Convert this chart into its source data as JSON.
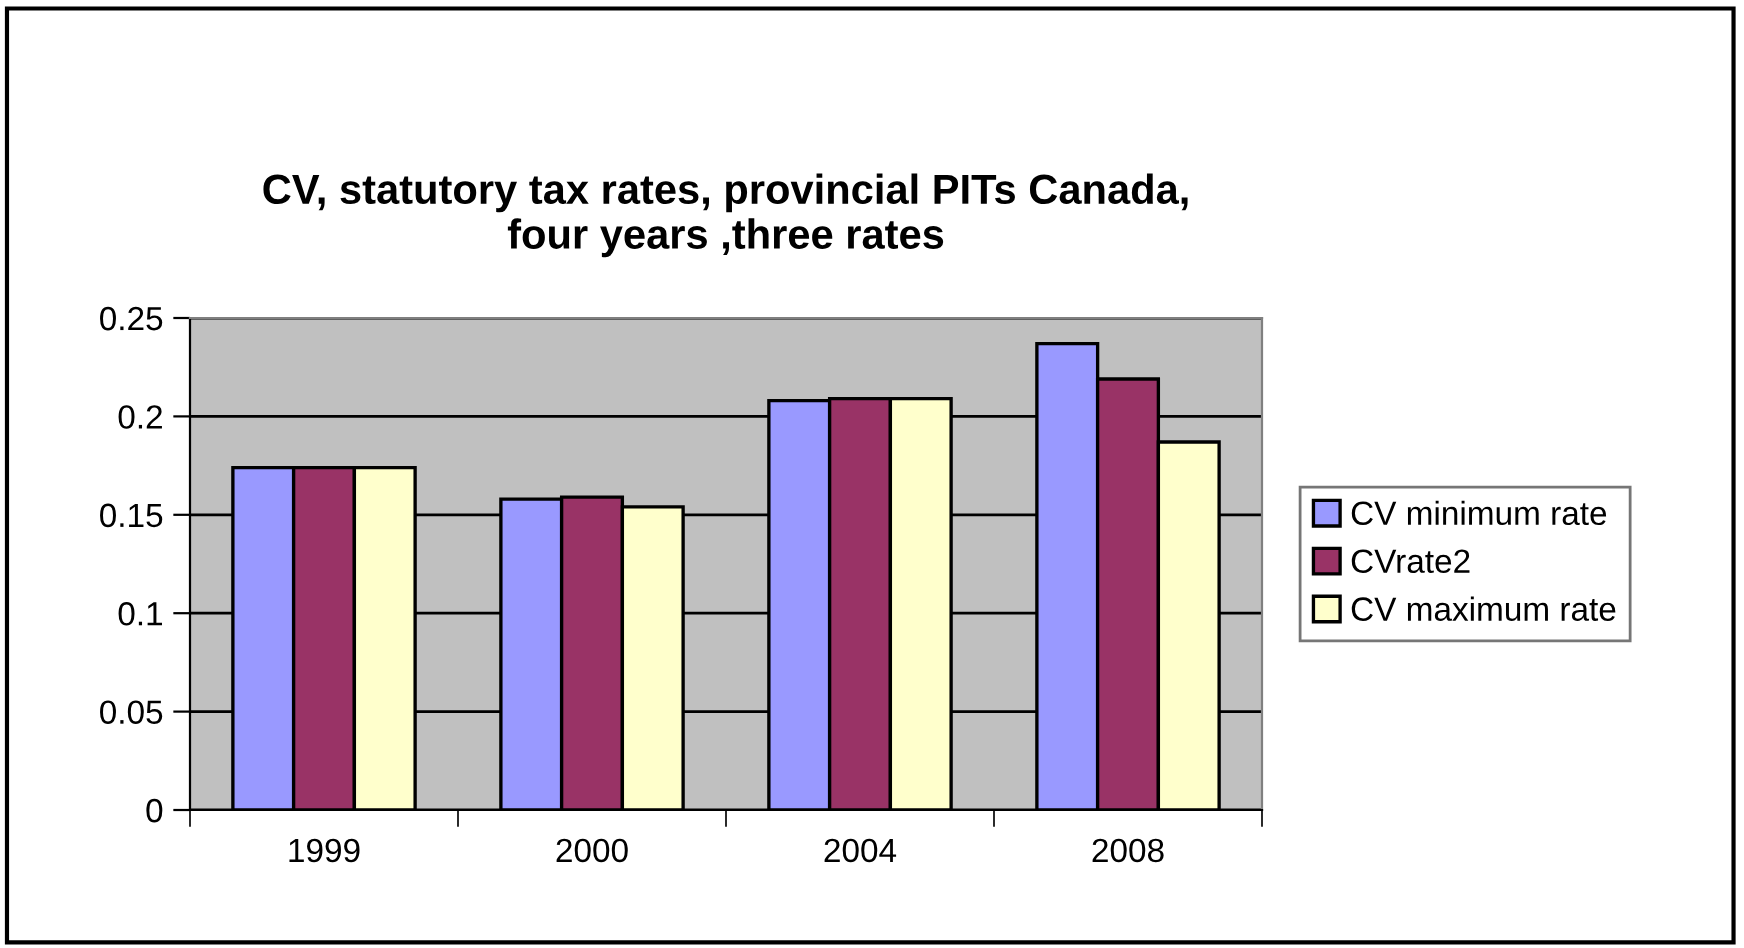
{
  "chart_data": {
    "type": "bar",
    "title": "CV, statutory tax rates, provincial PITs Canada,\nfour years ,three rates",
    "categories": [
      "1999",
      "2000",
      "2004",
      "2008"
    ],
    "series": [
      {
        "name": "CV minimum rate",
        "color": "#9999ff",
        "values": [
          0.174,
          0.158,
          0.208,
          0.237
        ]
      },
      {
        "name": "CVrate2",
        "color": "#993366",
        "values": [
          0.174,
          0.159,
          0.209,
          0.219
        ]
      },
      {
        "name": "CV maximum rate",
        "color": "#ffffcc",
        "values": [
          0.174,
          0.154,
          0.209,
          0.187
        ]
      }
    ],
    "ylim": [
      0,
      0.25
    ],
    "yticks": [
      0,
      0.05,
      0.1,
      0.15,
      0.2,
      0.25
    ],
    "grid": "y",
    "legend": "right"
  }
}
